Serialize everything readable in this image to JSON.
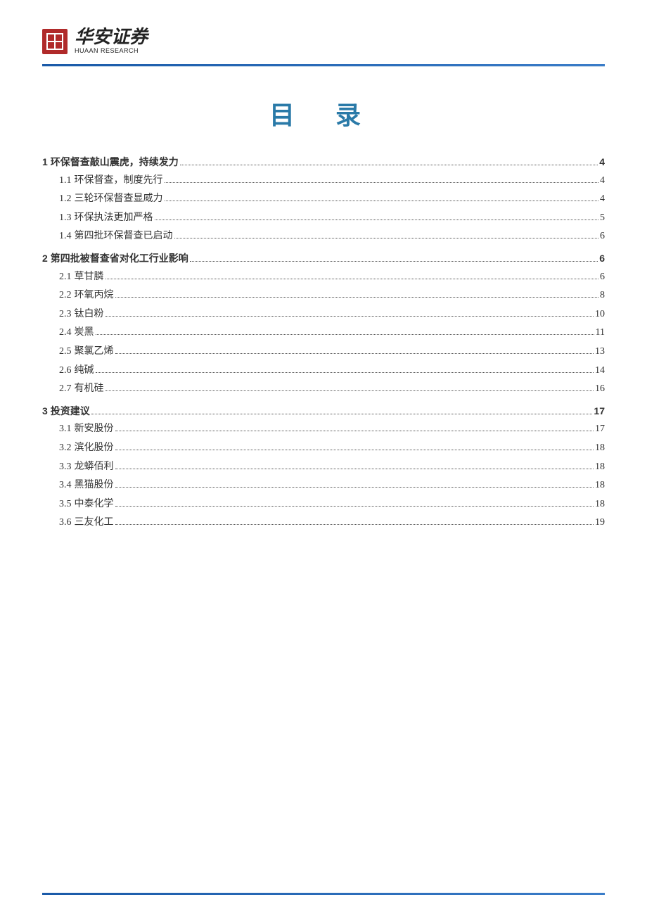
{
  "brand": {
    "name_cn": "华安证券",
    "name_en": "HUAAN RESEARCH"
  },
  "title": "目 录",
  "colors": {
    "brand_red": "#b02a2a",
    "rule_blue": "#1a5aa8",
    "title_teal": "#2a7aa8",
    "text": "#333333",
    "background": "#ffffff"
  },
  "toc": [
    {
      "level": 1,
      "num": "1",
      "label": "环保督查敲山震虎，持续发力",
      "page": "4"
    },
    {
      "level": 2,
      "num": "1.1",
      "label": "环保督查，制度先行",
      "page": "4"
    },
    {
      "level": 2,
      "num": "1.2",
      "label": "三轮环保督查显威力",
      "page": "4"
    },
    {
      "level": 2,
      "num": "1.3",
      "label": "环保执法更加严格",
      "page": "5"
    },
    {
      "level": 2,
      "num": "1.4",
      "label": "第四批环保督查已启动",
      "page": "6"
    },
    {
      "level": 1,
      "num": "2",
      "label": "第四批被督查省对化工行业影响",
      "page": "6"
    },
    {
      "level": 2,
      "num": "2.1",
      "label": "草甘膦",
      "page": "6"
    },
    {
      "level": 2,
      "num": "2.2",
      "label": "环氧丙烷",
      "page": "8"
    },
    {
      "level": 2,
      "num": "2.3",
      "label": "钛白粉",
      "page": "10"
    },
    {
      "level": 2,
      "num": "2.4",
      "label": "炭黑",
      "page": "11"
    },
    {
      "level": 2,
      "num": "2.5",
      "label": "聚氯乙烯",
      "page": "13"
    },
    {
      "level": 2,
      "num": "2.6",
      "label": "纯碱",
      "page": "14"
    },
    {
      "level": 2,
      "num": "2.7",
      "label": "有机硅",
      "page": "16"
    },
    {
      "level": 1,
      "num": "3",
      "label": "投资建议",
      "page": "17"
    },
    {
      "level": 2,
      "num": "3.1",
      "label": "新安股份",
      "page": "17"
    },
    {
      "level": 2,
      "num": "3.2",
      "label": "滨化股份",
      "page": "18"
    },
    {
      "level": 2,
      "num": "3.3",
      "label": "龙蟒佰利",
      "page": "18"
    },
    {
      "level": 2,
      "num": "3.4",
      "label": "黑猫股份",
      "page": "18"
    },
    {
      "level": 2,
      "num": "3.5",
      "label": "中泰化学",
      "page": "18"
    },
    {
      "level": 2,
      "num": "3.6",
      "label": "三友化工",
      "page": "19"
    }
  ]
}
